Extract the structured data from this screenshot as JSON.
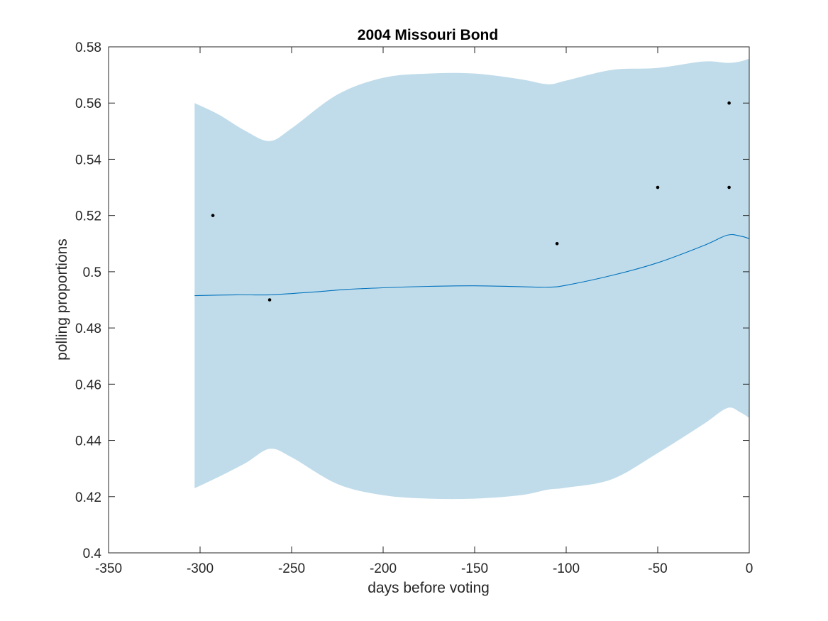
{
  "chart_data": {
    "type": "line",
    "title": "2004 Missouri Bond",
    "xlabel": "days before voting",
    "ylabel": "polling proportions",
    "xlim": [
      -350,
      0
    ],
    "ylim": [
      0.4,
      0.58
    ],
    "xticks": [
      -350,
      -300,
      -250,
      -200,
      -150,
      -100,
      -50,
      0
    ],
    "xtick_labels": [
      "-350",
      "-300",
      "-250",
      "-200",
      "-150",
      "-100",
      "-50",
      "0"
    ],
    "yticks": [
      0.4,
      0.42,
      0.44,
      0.46,
      0.48,
      0.5,
      0.52,
      0.54,
      0.56,
      0.58
    ],
    "ytick_labels": [
      "0.4",
      "0.42",
      "0.44",
      "0.46",
      "0.48",
      "0.5",
      "0.52",
      "0.54",
      "0.56",
      "0.58"
    ],
    "grid": false,
    "colors": {
      "band": "#c0dcea",
      "line": "#0072bd",
      "points": "#000000",
      "axes": "#262626"
    },
    "confidence_band": {
      "x": [
        -303,
        -290,
        -275,
        -262,
        -250,
        -225,
        -200,
        -175,
        -150,
        -125,
        -110,
        -100,
        -75,
        -50,
        -25,
        -12,
        -5,
        0
      ],
      "upper": [
        0.56,
        0.556,
        0.55,
        0.5465,
        0.551,
        0.563,
        0.569,
        0.5705,
        0.5705,
        0.5685,
        0.5667,
        0.568,
        0.5718,
        0.5725,
        0.5748,
        0.5743,
        0.5748,
        0.5758
      ],
      "lower": [
        0.423,
        0.427,
        0.432,
        0.437,
        0.434,
        0.4245,
        0.4205,
        0.4193,
        0.4193,
        0.4205,
        0.4225,
        0.4232,
        0.4262,
        0.4355,
        0.4458,
        0.4515,
        0.45,
        0.448
      ]
    },
    "series": [
      {
        "x": [
          -303,
          -280,
          -262,
          -240,
          -220,
          -200,
          -175,
          -150,
          -125,
          -110,
          -100,
          -75,
          -50,
          -25,
          -12,
          -5,
          0
        ],
        "y": [
          0.4915,
          0.4918,
          0.4918,
          0.4927,
          0.4937,
          0.4943,
          0.4948,
          0.495,
          0.4947,
          0.4945,
          0.4952,
          0.4987,
          0.5032,
          0.5093,
          0.513,
          0.5127,
          0.5118
        ]
      }
    ],
    "points": {
      "x": [
        -293,
        -262,
        -105,
        -50,
        -11,
        -11
      ],
      "y": [
        0.52,
        0.49,
        0.51,
        0.53,
        0.53,
        0.56
      ]
    }
  }
}
